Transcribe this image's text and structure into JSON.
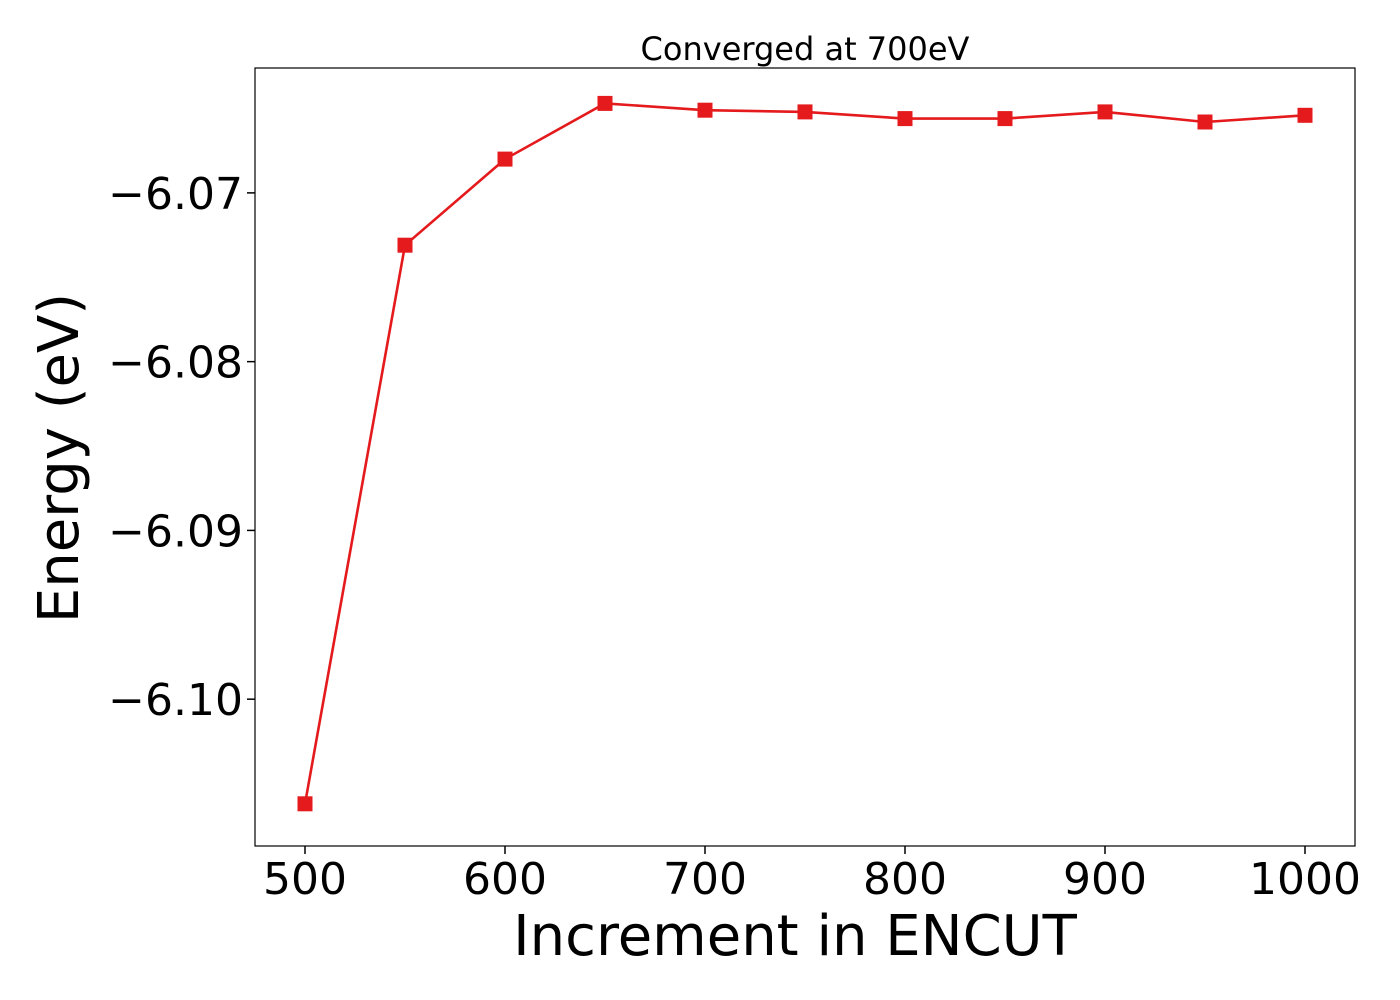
{
  "chart_data": {
    "type": "line",
    "title": "Converged at 700eV",
    "xlabel": "Increment in ENCUT",
    "ylabel": "Energy (eV)",
    "xlim": [
      475,
      1025
    ],
    "ylim": [
      -6.1087,
      -6.0626
    ],
    "x_ticks": [
      500,
      600,
      700,
      800,
      900,
      1000
    ],
    "x_tick_labels": [
      "500",
      "600",
      "700",
      "800",
      "900",
      "1000"
    ],
    "y_ticks": [
      -6.07,
      -6.08,
      -6.09,
      -6.1
    ],
    "y_tick_labels": [
      "−6.07",
      "−6.08",
      "−6.09",
      "−6.10"
    ],
    "grid": false,
    "series": [
      {
        "color": "#e41a1c",
        "marker": "square",
        "x": [
          500,
          550,
          600,
          650,
          700,
          750,
          800,
          850,
          900,
          950,
          1000
        ],
        "y": [
          -6.1062,
          -6.0731,
          -6.068,
          -6.0647,
          -6.0651,
          -6.0652,
          -6.0656,
          -6.0656,
          -6.0652,
          -6.0658,
          -6.0654
        ]
      }
    ]
  }
}
